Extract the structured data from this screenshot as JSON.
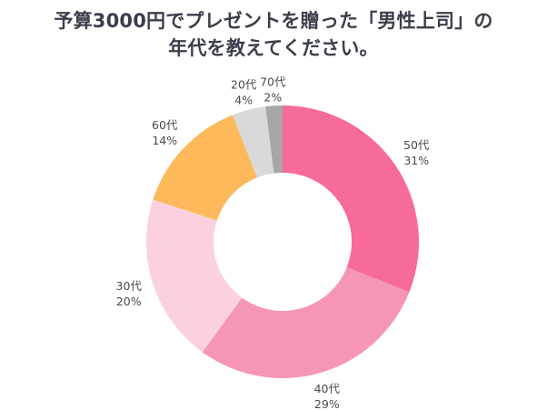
{
  "chart_data": {
    "type": "pie",
    "title_lines": [
      "予算3000円でプレゼントを贈った「男性上司」の",
      "年代を教えてください。"
    ],
    "categories": [
      "50代",
      "40代",
      "30代",
      "60代",
      "20代",
      "70代"
    ],
    "values": [
      31,
      29,
      20,
      14,
      4,
      2
    ],
    "value_labels": [
      "31%",
      "29%",
      "20%",
      "14%",
      "4%",
      "2%"
    ],
    "colors": [
      "#f76b98",
      "#f596b4",
      "#fbd1df",
      "#fdb95a",
      "#d9d9d9",
      "#a6a6a6"
    ],
    "donut": true,
    "start": "top, clockwise",
    "legend": "none (labels outside slices)"
  }
}
